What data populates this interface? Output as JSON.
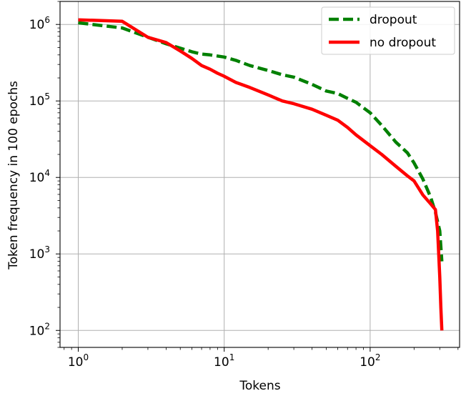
{
  "chart_data": {
    "type": "line",
    "title": "",
    "xlabel": "Tokens",
    "ylabel": "Token frequency in 100 epochs",
    "xscale": "log",
    "yscale": "log",
    "xlim": [
      0.75,
      410
    ],
    "ylim": [
      60,
      2000000
    ],
    "grid": true,
    "legend_position": "top-right",
    "x_ticks": [
      {
        "base": "10",
        "exp": "0",
        "value": 1
      },
      {
        "base": "10",
        "exp": "1",
        "value": 10
      },
      {
        "base": "10",
        "exp": "2",
        "value": 100
      }
    ],
    "y_ticks": [
      {
        "base": "10",
        "exp": "2",
        "value": 100
      },
      {
        "base": "10",
        "exp": "3",
        "value": 1000
      },
      {
        "base": "10",
        "exp": "4",
        "value": 10000
      },
      {
        "base": "10",
        "exp": "5",
        "value": 100000
      },
      {
        "base": "10",
        "exp": "6",
        "value": 1000000
      }
    ],
    "series": [
      {
        "name": "dropout",
        "color": "#008000",
        "style": "dashed",
        "x": [
          1,
          2,
          3,
          4,
          5,
          6,
          7,
          8,
          10,
          12,
          15,
          20,
          25,
          30,
          40,
          50,
          60,
          70,
          80,
          100,
          120,
          150,
          180,
          200,
          230,
          260,
          280,
          300,
          310
        ],
        "y": [
          1050000,
          900000,
          680000,
          560000,
          490000,
          440000,
          410000,
          400000,
          375000,
          340000,
          290000,
          250000,
          220000,
          205000,
          165000,
          135000,
          125000,
          108000,
          96000,
          70000,
          48000,
          29000,
          21000,
          15500,
          9500,
          5500,
          3500,
          2000,
          800
        ]
      },
      {
        "name": "no dropout",
        "color": "#ff0000",
        "style": "solid",
        "x": [
          1,
          2,
          3,
          4,
          5,
          6,
          7,
          8,
          9,
          10,
          12,
          15,
          20,
          25,
          30,
          40,
          50,
          60,
          70,
          80,
          100,
          120,
          150,
          180,
          200,
          230,
          260,
          280,
          290,
          295,
          300,
          305,
          310
        ],
        "y": [
          1150000,
          1100000,
          680000,
          580000,
          450000,
          360000,
          290000,
          260000,
          230000,
          210000,
          175000,
          150000,
          120000,
          100000,
          92000,
          78000,
          65000,
          56000,
          45000,
          36000,
          26000,
          20000,
          14000,
          10500,
          9000,
          5900,
          4500,
          3800,
          2000,
          1000,
          500,
          200,
          100
        ]
      }
    ]
  }
}
